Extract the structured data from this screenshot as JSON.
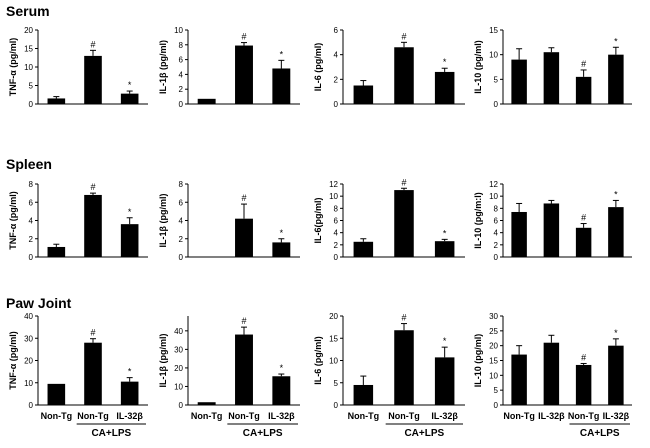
{
  "figure": {
    "row_titles": [
      "Serum",
      "Spleen",
      "Paw Joint"
    ],
    "x_labels_3": [
      "Non-Tg",
      "Non-Tg",
      "IL-32β"
    ],
    "x_labels_4": [
      "Non-Tg",
      "IL-32β",
      "Non-Tg",
      "IL-32β"
    ],
    "group_label": "CA+LPS"
  },
  "colors": {
    "bar": "#000000",
    "axis": "#000000",
    "background": "#ffffff"
  },
  "chart_data": [
    {
      "type": "bar",
      "row": "Serum",
      "ylabel": "TNF-α (pg/ml)",
      "ylim": [
        0,
        20
      ],
      "yticks": [
        0,
        5,
        10,
        15,
        20
      ],
      "values": [
        1.5,
        13,
        2.8
      ],
      "errors": [
        0.5,
        1.5,
        0.7
      ],
      "annotations": [
        "",
        "#",
        "*"
      ],
      "xticklabels": false
    },
    {
      "type": "bar",
      "row": "Serum",
      "ylabel": "IL-1β (pg/ml)",
      "ylim": [
        0,
        10
      ],
      "yticks": [
        0,
        2,
        4,
        6,
        8,
        10
      ],
      "values": [
        0.7,
        7.9,
        4.8
      ],
      "errors": [
        0,
        0.4,
        1.1
      ],
      "annotations": [
        "",
        "#",
        "*"
      ],
      "xticklabels": false
    },
    {
      "type": "bar",
      "row": "Serum",
      "ylabel": "IL-6 (pg/ml)",
      "ylim": [
        0,
        6
      ],
      "yticks": [
        0,
        2,
        4,
        6
      ],
      "values": [
        1.5,
        4.6,
        2.6
      ],
      "errors": [
        0.4,
        0.4,
        0.3
      ],
      "annotations": [
        "",
        "#",
        "*"
      ],
      "xticklabels": false
    },
    {
      "type": "bar",
      "row": "Serum",
      "ylabel": "IL-10 (pg/ml)",
      "ylim": [
        0,
        15
      ],
      "yticks": [
        0,
        5,
        10,
        15
      ],
      "values": [
        9,
        10.5,
        5.5,
        10
      ],
      "errors": [
        2.2,
        0.9,
        1.4,
        1.5
      ],
      "annotations": [
        "",
        "",
        "#",
        "*"
      ],
      "xticklabels": false
    },
    {
      "type": "bar",
      "row": "Spleen",
      "ylabel": "TNF-α (pg/ml)",
      "ylim": [
        0,
        8
      ],
      "yticks": [
        0,
        2,
        4,
        6,
        8
      ],
      "values": [
        1.1,
        6.8,
        3.6
      ],
      "errors": [
        0.3,
        0.2,
        0.7
      ],
      "annotations": [
        "",
        "#",
        "*"
      ],
      "xticklabels": false
    },
    {
      "type": "bar",
      "row": "Spleen",
      "ylabel": "IL-1β (pg/ml)",
      "ylim": [
        0,
        8
      ],
      "yticks": [
        0,
        2,
        4,
        6,
        8
      ],
      "values": [
        0.05,
        4.2,
        1.6
      ],
      "errors": [
        0,
        1.6,
        0.4
      ],
      "annotations": [
        "",
        "#",
        "*"
      ],
      "xticklabels": false
    },
    {
      "type": "bar",
      "row": "Spleen",
      "ylabel": "IL-6(pg/ml)",
      "ylim": [
        0,
        12
      ],
      "yticks": [
        0,
        2,
        4,
        6,
        8,
        10,
        12
      ],
      "values": [
        2.5,
        11,
        2.6
      ],
      "errors": [
        0.5,
        0.3,
        0.3
      ],
      "annotations": [
        "",
        "#",
        "*"
      ],
      "xticklabels": false
    },
    {
      "type": "bar",
      "row": "Spleen",
      "ylabel": "IL-10 (pg/m:l)",
      "ylim": [
        0,
        12
      ],
      "yticks": [
        0,
        2,
        4,
        6,
        8,
        10,
        12
      ],
      "values": [
        7.4,
        8.8,
        4.8,
        8.2
      ],
      "errors": [
        1.4,
        0.5,
        0.7,
        1.1
      ],
      "annotations": [
        "",
        "",
        "#",
        "*"
      ],
      "xticklabels": false
    },
    {
      "type": "bar",
      "row": "Paw Joint",
      "ylabel": "TNF-α (pg/ml)",
      "ylim": [
        0,
        40
      ],
      "yticks": [
        0,
        10,
        20,
        30,
        40
      ],
      "values": [
        9.5,
        28,
        10.5
      ],
      "errors": [
        0,
        1.8,
        1.8
      ],
      "annotations": [
        "",
        "#",
        "*"
      ],
      "xticklabels": true
    },
    {
      "type": "bar",
      "row": "Paw Joint",
      "ylabel": "IL-1β (pg/ml)",
      "ylim": [
        0,
        48
      ],
      "yticks": [
        0,
        10,
        20,
        30,
        40
      ],
      "values": [
        1.5,
        38,
        15.5
      ],
      "errors": [
        0,
        4,
        1.2
      ],
      "annotations": [
        "",
        "#",
        "*"
      ],
      "xticklabels": true
    },
    {
      "type": "bar",
      "row": "Paw Joint",
      "ylabel": "IL-6 (pg/ml)",
      "ylim": [
        0,
        20
      ],
      "yticks": [
        0,
        5,
        10,
        15,
        20
      ],
      "values": [
        4.5,
        16.8,
        10.7
      ],
      "errors": [
        2,
        1.5,
        2.3
      ],
      "annotations": [
        "",
        "#",
        "*"
      ],
      "xticklabels": true
    },
    {
      "type": "bar",
      "row": "Paw Joint",
      "ylabel": "IL-10 (pg/ml)",
      "ylim": [
        0,
        30
      ],
      "yticks": [
        0,
        5,
        10,
        15,
        20,
        25,
        30
      ],
      "values": [
        17,
        21,
        13.5,
        20
      ],
      "errors": [
        3,
        2.5,
        0.5,
        2.3
      ],
      "annotations": [
        "",
        "",
        "#",
        "*"
      ],
      "xticklabels": true
    }
  ]
}
